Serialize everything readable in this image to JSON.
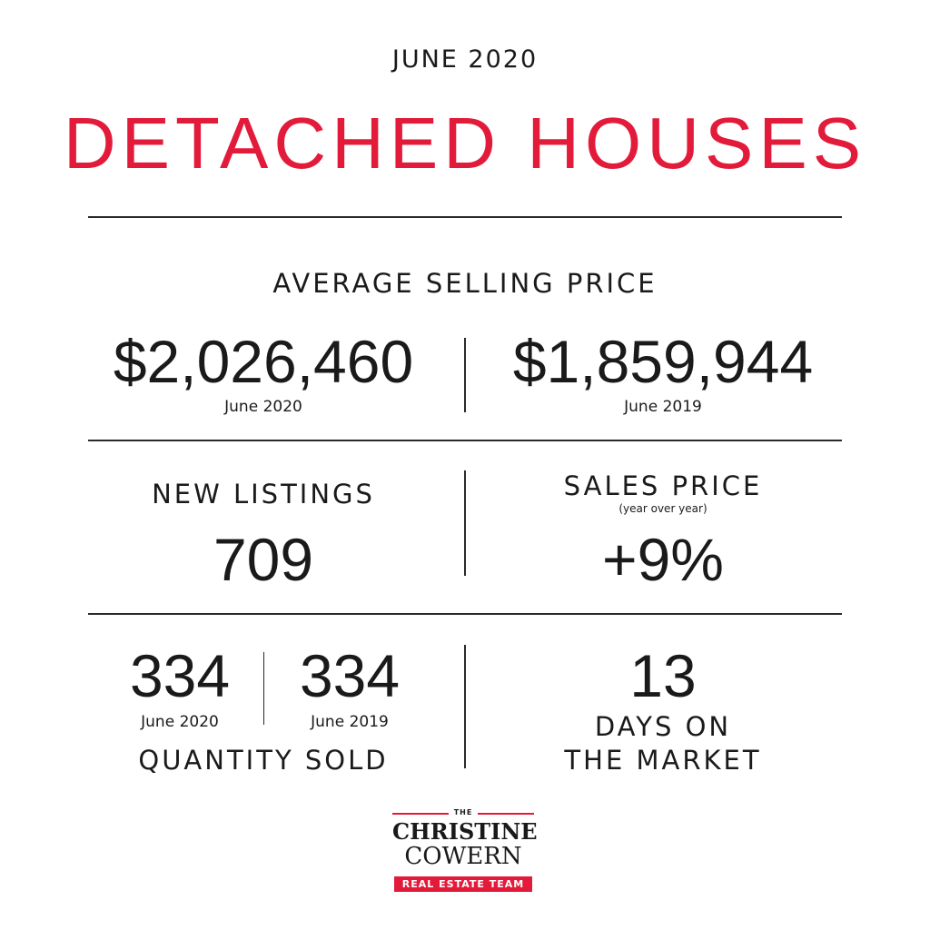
{
  "header": {
    "date": "JUNE 2020",
    "title": "DETACHED HOUSES"
  },
  "average_selling_price": {
    "heading": "AVERAGE SELLING PRICE",
    "current": {
      "value": "$2,026,460",
      "label": "June 2020"
    },
    "previous": {
      "value": "$1,859,944",
      "label": "June 2019"
    }
  },
  "new_listings": {
    "heading": "NEW LISTINGS",
    "value": "709"
  },
  "sales_price": {
    "heading": "SALES PRICE",
    "subheading": "(year over year)",
    "value": "+9%"
  },
  "quantity_sold": {
    "current": {
      "value": "334",
      "label": "June 2020"
    },
    "previous": {
      "value": "334",
      "label": "June 2019"
    },
    "heading": "QUANTITY SOLD"
  },
  "days_on_market": {
    "value": "13",
    "line1": "DAYS ON",
    "line2": "THE MARKET"
  },
  "logo": {
    "the": "THE",
    "name_line1": "CHRISTINE",
    "name_line2": "COWERN",
    "badge": "REAL ESTATE TEAM"
  },
  "colors": {
    "accent": "#e31b3b",
    "text": "#1a1a1a",
    "rule": "#2a2a2a"
  }
}
